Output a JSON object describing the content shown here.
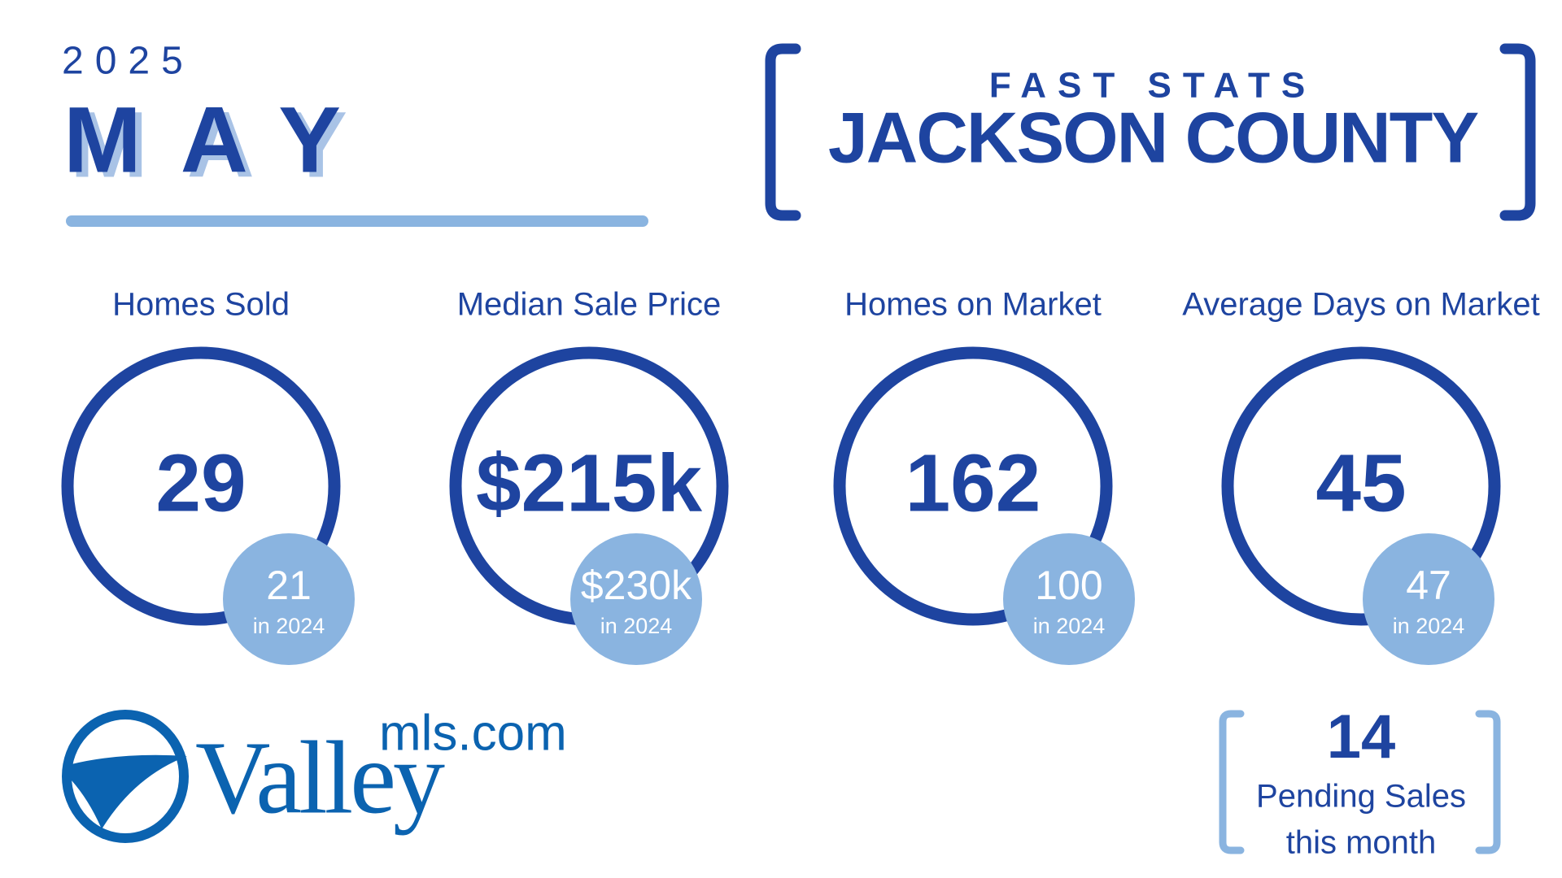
{
  "header": {
    "year": "2025",
    "month": "MAY",
    "kicker": "FAST STATS",
    "county": "JACKSON COUNTY"
  },
  "stats": [
    {
      "label": "Homes Sold",
      "value": "29",
      "prior": "21",
      "prior_label": "in 2024"
    },
    {
      "label": "Median Sale Price",
      "value": "$215k",
      "prior": "$230k",
      "prior_label": "in 2024"
    },
    {
      "label": "Homes on Market",
      "value": "162",
      "prior": "100",
      "prior_label": "in 2024"
    },
    {
      "label": "Average Days on Market",
      "value": "45",
      "prior": "47",
      "prior_label": "in 2024"
    }
  ],
  "pending": {
    "value": "14",
    "label": "Pending Sales",
    "sub": "this month"
  },
  "logo": {
    "name": "Valley",
    "domain": "mls.com"
  }
}
